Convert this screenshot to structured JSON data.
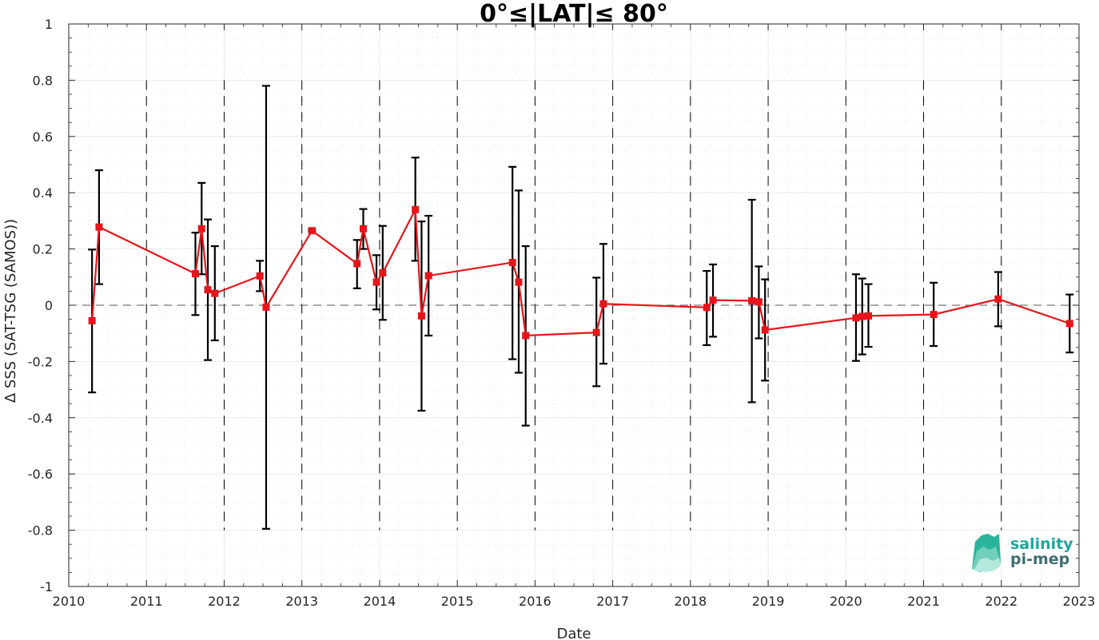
{
  "chart_data": {
    "type": "line",
    "title": "0°≤|LAT|≤ 80°",
    "xlabel": "Date",
    "ylabel": "Δ SSS (SAT-TSG (SAMOS))",
    "xlim": [
      2010,
      2023
    ],
    "ylim": [
      -1,
      1
    ],
    "x_ticks": [
      "2010",
      "2011",
      "2012",
      "2013",
      "2014",
      "2015",
      "2016",
      "2017",
      "2018",
      "2019",
      "2020",
      "2021",
      "2022",
      "2023"
    ],
    "y_ticks": [
      "1",
      "0.8",
      "0.6",
      "0.4",
      "0.2",
      "0",
      "-0.2",
      "-0.4",
      "-0.6",
      "-0.8",
      "-1"
    ],
    "y_tick_values": [
      1,
      0.8,
      0.6,
      0.4,
      0.2,
      0,
      -0.2,
      -0.4,
      -0.6,
      -0.8,
      -1
    ],
    "grid": true,
    "series": [
      {
        "color": "#e8141a",
        "marker": "square",
        "x": [
          2010.3,
          2010.39,
          2011.63,
          2011.71,
          2011.79,
          2011.88,
          2012.46,
          2012.54,
          2013.13,
          2013.71,
          2013.79,
          2013.96,
          2014.04,
          2014.46,
          2014.54,
          2014.63,
          2015.71,
          2015.79,
          2015.88,
          2016.79,
          2016.88,
          2018.21,
          2018.29,
          2018.79,
          2018.88,
          2018.96,
          2020.13,
          2020.21,
          2020.29,
          2021.13,
          2021.96,
          2022.88
        ],
        "y": [
          -0.055,
          0.278,
          0.112,
          0.272,
          0.055,
          0.042,
          0.104,
          -0.007,
          0.265,
          0.148,
          0.272,
          0.082,
          0.115,
          0.34,
          -0.038,
          0.105,
          0.152,
          0.082,
          -0.108,
          -0.097,
          0.005,
          -0.008,
          0.018,
          0.016,
          0.012,
          -0.088,
          -0.045,
          -0.04,
          -0.038,
          -0.033,
          0.022,
          -0.065
        ],
        "error_low": [
          -0.31,
          0.075,
          -0.035,
          0.11,
          -0.195,
          -0.125,
          0.05,
          -0.795,
          0.262,
          0.06,
          0.2,
          -0.015,
          -0.052,
          0.158,
          -0.375,
          -0.108,
          -0.192,
          -0.24,
          -0.428,
          -0.288,
          -0.208,
          -0.142,
          -0.112,
          -0.345,
          -0.118,
          -0.268,
          -0.198,
          -0.175,
          -0.148,
          -0.145,
          -0.075,
          -0.168
        ],
        "error_high": [
          0.198,
          0.48,
          0.258,
          0.435,
          0.305,
          0.21,
          0.158,
          0.78,
          0.27,
          0.232,
          0.342,
          0.178,
          0.282,
          0.525,
          0.298,
          0.318,
          0.492,
          0.408,
          0.21,
          0.098,
          0.218,
          0.122,
          0.145,
          0.375,
          0.138,
          0.092,
          0.11,
          0.095,
          0.075,
          0.08,
          0.118,
          0.038
        ]
      }
    ],
    "zero_line": 0,
    "year_boundaries": [
      2011,
      2012,
      2013,
      2014,
      2015,
      2016,
      2017,
      2018,
      2019,
      2020,
      2021,
      2022
    ],
    "year_boundary_range": [
      -0.8,
      0.8
    ]
  },
  "logo": {
    "line1": "salinity",
    "line2": "pi-mep",
    "color1": "#1fa79a",
    "color2": "#3e6e72"
  }
}
